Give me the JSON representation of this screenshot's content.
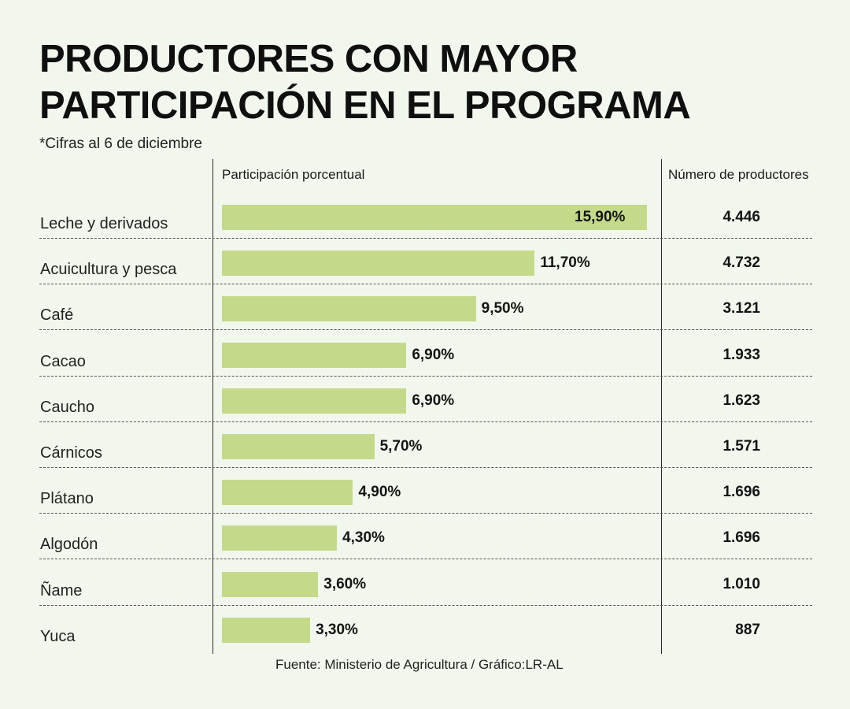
{
  "header": {
    "title_line1": "PRODUCTORES CON MAYOR",
    "title_line2": "PARTICIPACIÓN EN EL PROGRAMA",
    "subtitle": "*Cifras al 6 de diciembre",
    "col_pct": "Participación porcentual",
    "col_num": "Número de productores"
  },
  "footer": {
    "source": "Fuente: Ministerio de Agricultura / Gráfico:LR-AL"
  },
  "colors": {
    "background": "#f1f7ec",
    "bar": "#c5d98b"
  },
  "chart_data": {
    "type": "bar",
    "orientation": "horizontal",
    "title": "PRODUCTORES CON MAYOR PARTICIPACIÓN EN EL PROGRAMA",
    "xlabel": "Participación porcentual",
    "xlim": [
      0,
      15.9
    ],
    "categories": [
      "Leche y derivados",
      "Acuicultura y pesca",
      "Café",
      "Cacao",
      "Caucho",
      "Cárnicos",
      "Plátano",
      "Algodón",
      "Ñame",
      "Yuca"
    ],
    "values": [
      15.9,
      11.7,
      9.5,
      6.9,
      6.9,
      5.7,
      4.9,
      4.3,
      3.6,
      3.3
    ],
    "value_labels": [
      "15,90%",
      "11,70%",
      "9,50%",
      "6,90%",
      "6,90%",
      "5,70%",
      "4,90%",
      "4,30%",
      "3,60%",
      "3,30%"
    ],
    "producers": [
      "4.446",
      "4.732",
      "3.121",
      "1.933",
      "1.623",
      "1.571",
      "1.696",
      "1.696",
      "1.010",
      "887"
    ]
  }
}
